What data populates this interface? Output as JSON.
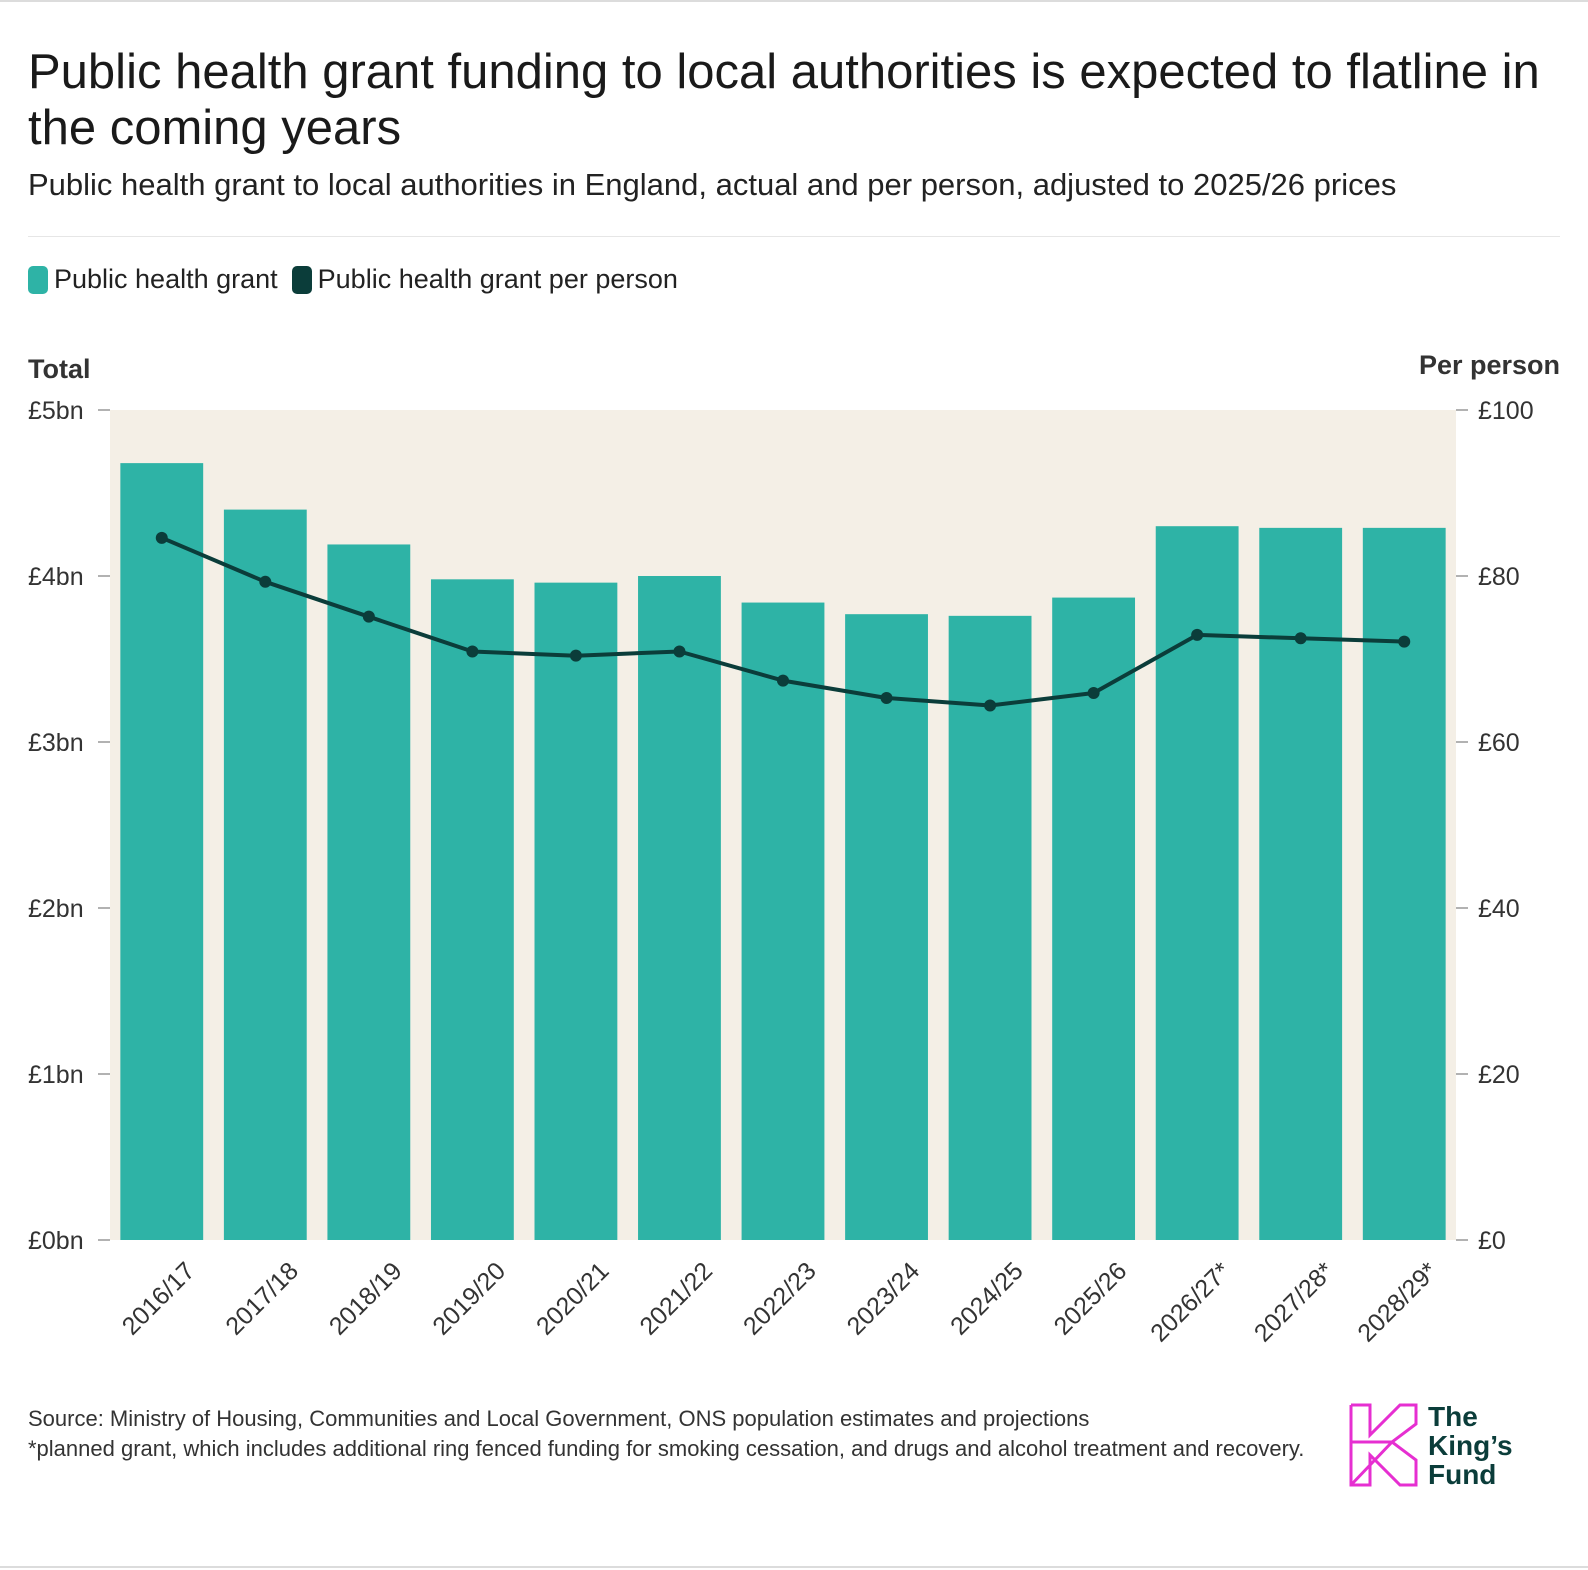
{
  "header": {
    "title": "Public health grant funding to local authorities is expected to flatline in the coming years",
    "subtitle": "Public health grant to local authorities in England, actual and per person, adjusted to 2025/26 prices"
  },
  "legend": [
    {
      "label": "Public health grant",
      "color": "#2eb3a6"
    },
    {
      "label": "Public health grant per person",
      "color": "#0b3d3a"
    }
  ],
  "chart_data": {
    "type": "bar",
    "title": "Public health grant funding to local authorities is expected to flatline in the coming years",
    "subtitle": "Public health grant to local authorities in England, actual and per person, adjusted to 2025/26 prices",
    "ylabel": "Total",
    "y2label": "Per person",
    "categories": [
      "2016/17",
      "2017/18",
      "2018/19",
      "2019/20",
      "2020/21",
      "2021/22",
      "2022/23",
      "2023/24",
      "2024/25",
      "2025/26",
      "2026/27*",
      "2027/28*",
      "2028/29*"
    ],
    "series": [
      {
        "name": "Public health grant",
        "type": "bar",
        "axis": "left",
        "unit": "£bn",
        "color": "#2eb3a6",
        "values": [
          4.68,
          4.4,
          4.19,
          3.98,
          3.96,
          4.0,
          3.84,
          3.77,
          3.76,
          3.87,
          4.3,
          4.29,
          4.29
        ]
      },
      {
        "name": "Public health grant per person",
        "type": "line",
        "axis": "right",
        "unit": "£",
        "color": "#0b3d3a",
        "values": [
          84.6,
          79.3,
          75.1,
          70.9,
          70.4,
          70.9,
          67.4,
          65.3,
          64.4,
          65.9,
          72.9,
          72.5,
          72.1
        ]
      }
    ],
    "ylim": [
      0,
      5
    ],
    "y2lim": [
      0,
      100
    ],
    "yticks": [
      "£0bn",
      "£1bn",
      "£2bn",
      "£3bn",
      "£4bn",
      "£5bn"
    ],
    "y2ticks": [
      "£0",
      "£20",
      "£40",
      "£60",
      "£80",
      "£100"
    ],
    "grid": false,
    "legend_position": "top-left",
    "plot_background": "#f4efe6"
  },
  "footer": {
    "source": "Source: Ministry of Housing, Communities and Local Government, ONS population estimates and projections",
    "note": "*planned grant, which includes additional ring fenced funding for smoking cessation, and drugs and alcohol treatment and recovery."
  },
  "logo": {
    "text": "The\nKing’s\nFund",
    "color": "#e62fd1"
  }
}
